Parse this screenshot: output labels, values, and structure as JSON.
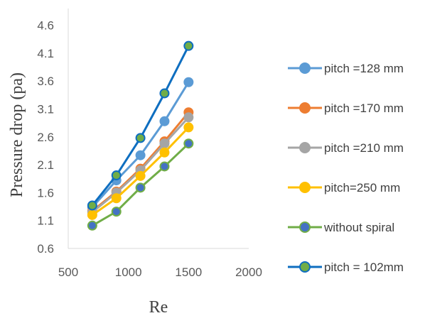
{
  "chart_data": {
    "type": "line",
    "title": "",
    "xlabel": "Re",
    "ylabel": "Pressure drop (pa)",
    "xlim": [
      500,
      2000
    ],
    "ylim": [
      0.6,
      4.9
    ],
    "x_ticks": [
      "500",
      "1000",
      "1500",
      "2000"
    ],
    "y_ticks": [
      "0.6",
      "1.1",
      "1.6",
      "2.1",
      "2.6",
      "3.1",
      "3.6",
      "4.1",
      "4.6"
    ],
    "grid": false,
    "legend_position": "right",
    "x": [
      700,
      900,
      1100,
      1300,
      1500
    ],
    "series": [
      {
        "name": "pitch =128 mm",
        "values": [
          1.34,
          1.82,
          2.27,
          2.88,
          3.58
        ],
        "color": "#5b9bd5",
        "marker_fill": "#5b9bd5"
      },
      {
        "name": "pitch =170 mm",
        "values": [
          1.27,
          1.62,
          2.03,
          2.52,
          3.04
        ],
        "color": "#ed7d31",
        "marker_fill": "#ed7d31"
      },
      {
        "name": "pitch =210 mm",
        "values": [
          1.25,
          1.6,
          2.0,
          2.48,
          2.95
        ],
        "color": "#a5a5a5",
        "marker_fill": "#a5a5a5"
      },
      {
        "name": "pitch=250 mm",
        "values": [
          1.2,
          1.5,
          1.9,
          2.32,
          2.77
        ],
        "color": "#ffc000",
        "marker_fill": "#ffc000"
      },
      {
        "name": "without spiral",
        "values": [
          1.01,
          1.26,
          1.69,
          2.07,
          2.48
        ],
        "color": "#70ad47",
        "marker_fill": "#4472c4"
      },
      {
        "name": "pitch = 102mm",
        "values": [
          1.37,
          1.91,
          2.58,
          3.38,
          4.23
        ],
        "color": "#0e6ec0",
        "marker_fill": "#70ad47"
      }
    ]
  }
}
